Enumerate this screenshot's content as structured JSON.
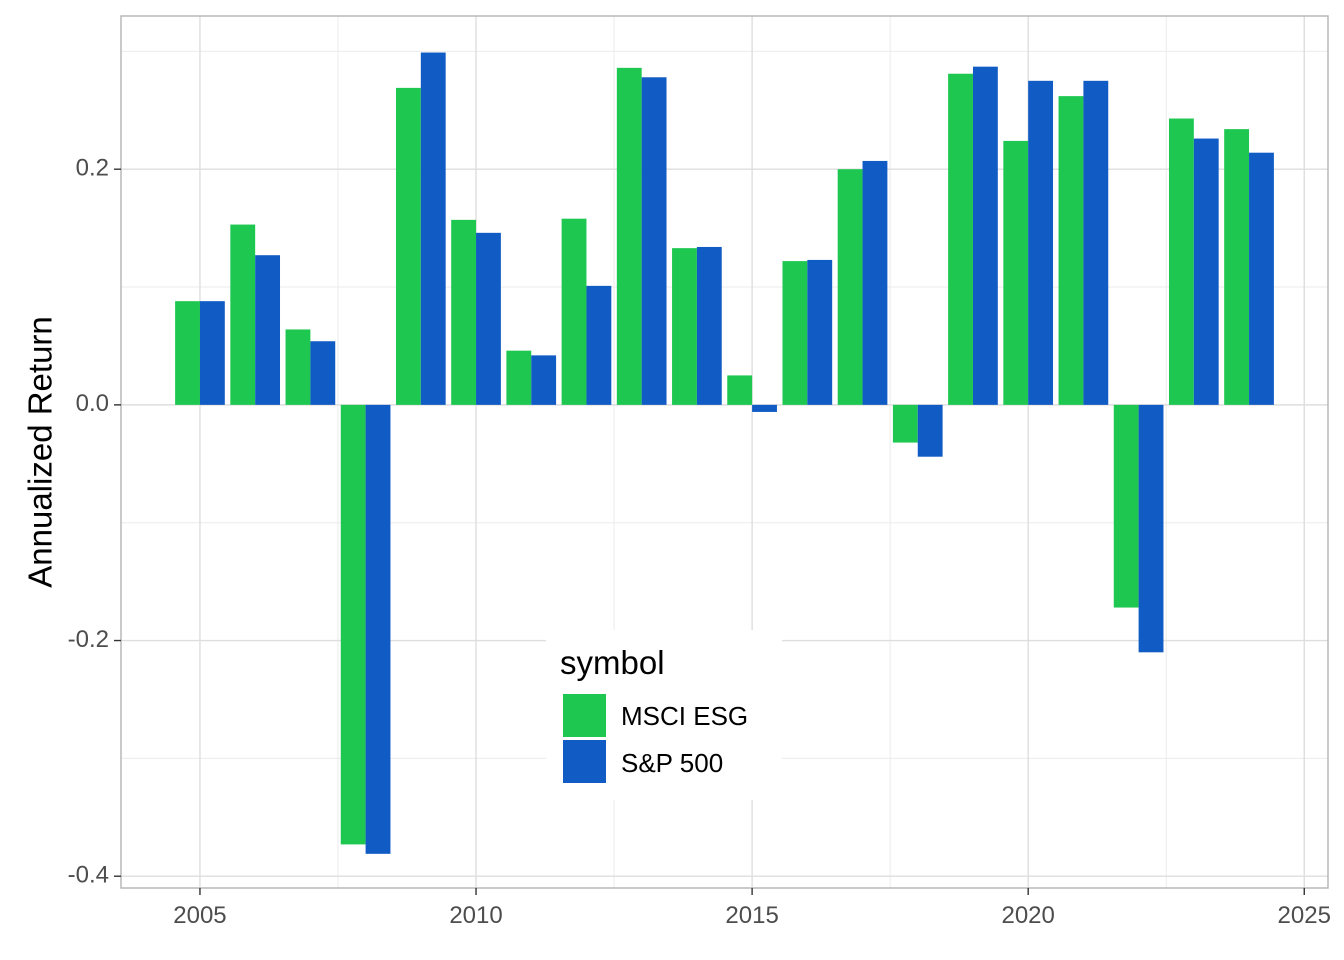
{
  "chart_data": {
    "type": "bar",
    "title": "",
    "xlabel": "",
    "ylabel": "Annualized Return",
    "x": [
      2005,
      2006,
      2007,
      2008,
      2009,
      2010,
      2011,
      2012,
      2013,
      2014,
      2015,
      2016,
      2017,
      2018,
      2019,
      2020,
      2021,
      2022,
      2023,
      2024
    ],
    "series": [
      {
        "name": "MSCI ESG",
        "color": "#1ec850",
        "values": [
          0.088,
          0.153,
          0.064,
          -0.373,
          0.269,
          0.157,
          0.046,
          0.158,
          0.286,
          0.133,
          0.025,
          0.122,
          0.2,
          -0.032,
          0.281,
          0.224,
          0.262,
          -0.172,
          0.243,
          0.234
        ]
      },
      {
        "name": "S&P 500",
        "color": "#115bc4",
        "values": [
          0.088,
          0.127,
          0.054,
          -0.381,
          0.299,
          0.146,
          0.042,
          0.101,
          0.278,
          0.134,
          -0.006,
          0.123,
          0.207,
          -0.044,
          0.287,
          0.275,
          0.275,
          -0.21,
          0.226,
          0.214
        ]
      }
    ],
    "x_ticks": [
      "2005",
      "2010",
      "2015",
      "2020",
      "2025"
    ],
    "y_ticks": [
      "-0.4",
      "-0.2",
      "0.0",
      "0.2"
    ],
    "xlim": [
      2003.57,
      2025.43
    ],
    "ylim": [
      -0.41,
      0.33
    ],
    "grid": true,
    "legend": {
      "title": "symbol",
      "position": "bottom-center-inside"
    }
  }
}
